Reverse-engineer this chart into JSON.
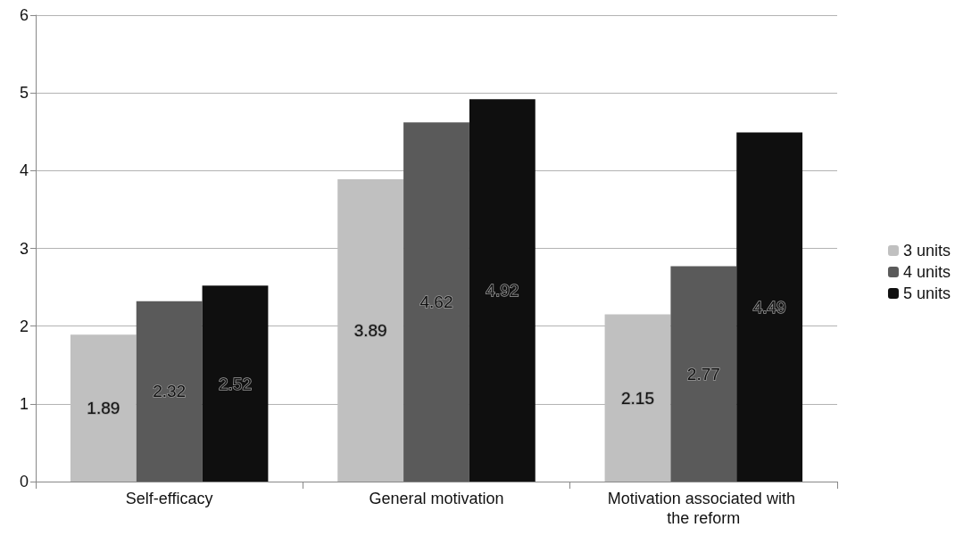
{
  "chart_data": {
    "type": "bar",
    "categories": [
      "Self-efficacy",
      "General motivation",
      "Motivation associated with the reform"
    ],
    "series": [
      {
        "name": "3 units",
        "color": "#c0c0c0",
        "values": [
          1.89,
          3.89,
          2.15
        ]
      },
      {
        "name": "4 units",
        "color": "#5a5a5a",
        "values": [
          2.32,
          4.62,
          2.77
        ]
      },
      {
        "name": "5 units",
        "color": "#0f0f0f",
        "values": [
          2.52,
          4.92,
          4.49
        ]
      }
    ],
    "ylim": [
      0,
      6
    ],
    "yticks": [
      0,
      1,
      2,
      3,
      4,
      5,
      6
    ],
    "grid": "y",
    "legend": "right",
    "data_labels": true
  }
}
